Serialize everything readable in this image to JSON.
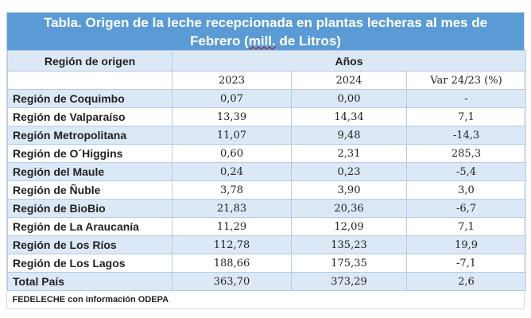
{
  "title_part1": "Tabla. Origen de la leche recepcionada en plantas lecheras al mes de",
  "title_part2a": "Febrero (",
  "title_part2b": "mill.",
  "title_part2c": " de Litros)",
  "header": {
    "region": "Región de origen",
    "years_group": "Años",
    "col_2023": "2023",
    "col_2024": "2024",
    "col_var": "Var 24/23 (%)"
  },
  "rows": [
    {
      "region": "Región de Coquimbo",
      "y2023": "0,07",
      "y2024": "0,00",
      "var": "-"
    },
    {
      "region": "Región de Valparaíso",
      "y2023": "13,39",
      "y2024": "14,34",
      "var": "7,1"
    },
    {
      "region": "Región Metropolitana",
      "y2023": "11,07",
      "y2024": "9,48",
      "var": "-14,3"
    },
    {
      "region": "Región de O´Higgins",
      "y2023": "0,60",
      "y2024": "2,31",
      "var": "285,3"
    },
    {
      "region": "Región del Maule",
      "y2023": "0,24",
      "y2024": "0,23",
      "var": "-5,4"
    },
    {
      "region": "Región de Ñuble",
      "y2023": "3,78",
      "y2024": "3,90",
      "var": "3,0"
    },
    {
      "region": "Región de BioBio",
      "y2023": "21,83",
      "y2024": "20,36",
      "var": "-6,7"
    },
    {
      "region": "Región de La Araucanía",
      "y2023": "11,29",
      "y2024": "12,09",
      "var": "7,1"
    },
    {
      "region": "Región de Los Ríos",
      "y2023": "112,78",
      "y2024": "135,23",
      "var": "19,9"
    },
    {
      "region": "Región de Los Lagos",
      "y2023": "188,66",
      "y2024": "175,35",
      "var": "-7,1"
    },
    {
      "region": "Total País",
      "y2023": "363,70",
      "y2024": "373,29",
      "var": "2,6"
    }
  ],
  "source": "FEDELECHE con información ODEPA"
}
